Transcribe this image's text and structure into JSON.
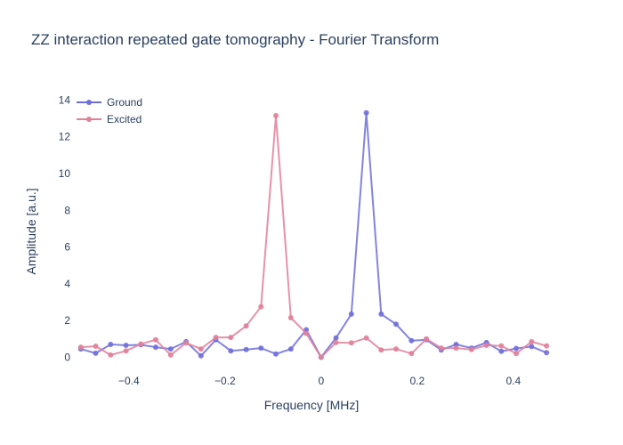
{
  "chart_data": {
    "type": "line",
    "title": "ZZ interaction repeated gate tomography - Fourier Transform",
    "xlabel": "Frequency [MHz]",
    "ylabel": "Amplitude [a.u.]",
    "xlim": [
      -0.52,
      0.48
    ],
    "ylim": [
      -0.9,
      14.6
    ],
    "xticks": [
      -0.4,
      -0.2,
      0,
      0.2,
      0.4
    ],
    "xtick_labels": [
      "−0.4",
      "−0.2",
      "0",
      "0.2",
      "0.4"
    ],
    "yticks": [
      0,
      2,
      4,
      6,
      8,
      10,
      12,
      14
    ],
    "ytick_labels": [
      "0",
      "2",
      "4",
      "6",
      "8",
      "10",
      "12",
      "14"
    ],
    "grid": false,
    "legend_position": "top-left",
    "series": [
      {
        "name": "Ground",
        "color": "#6f6fd9",
        "points": [
          [
            -0.5,
            0.45
          ],
          [
            -0.469,
            0.22
          ],
          [
            -0.438,
            0.7
          ],
          [
            -0.406,
            0.65
          ],
          [
            -0.375,
            0.68
          ],
          [
            -0.344,
            0.55
          ],
          [
            -0.313,
            0.45
          ],
          [
            -0.281,
            0.85
          ],
          [
            -0.25,
            0.08
          ],
          [
            -0.219,
            0.95
          ],
          [
            -0.188,
            0.35
          ],
          [
            -0.156,
            0.42
          ],
          [
            -0.125,
            0.5
          ],
          [
            -0.094,
            0.18
          ],
          [
            -0.063,
            0.45
          ],
          [
            -0.031,
            1.5
          ],
          [
            0.0,
            0.0
          ],
          [
            0.031,
            1.05
          ],
          [
            0.063,
            2.35
          ],
          [
            0.094,
            13.3
          ],
          [
            0.125,
            2.35
          ],
          [
            0.156,
            1.8
          ],
          [
            0.188,
            0.9
          ],
          [
            0.219,
            0.95
          ],
          [
            0.25,
            0.4
          ],
          [
            0.281,
            0.7
          ],
          [
            0.313,
            0.5
          ],
          [
            0.344,
            0.8
          ],
          [
            0.375,
            0.32
          ],
          [
            0.406,
            0.48
          ],
          [
            0.438,
            0.58
          ],
          [
            0.469,
            0.25
          ]
        ]
      },
      {
        "name": "Excited",
        "color": "#e0809a",
        "points": [
          [
            -0.5,
            0.55
          ],
          [
            -0.469,
            0.6
          ],
          [
            -0.438,
            0.12
          ],
          [
            -0.406,
            0.35
          ],
          [
            -0.375,
            0.72
          ],
          [
            -0.344,
            0.95
          ],
          [
            -0.313,
            0.12
          ],
          [
            -0.281,
            0.78
          ],
          [
            -0.25,
            0.45
          ],
          [
            -0.219,
            1.08
          ],
          [
            -0.188,
            1.08
          ],
          [
            -0.156,
            1.7
          ],
          [
            -0.125,
            2.75
          ],
          [
            -0.094,
            13.15
          ],
          [
            -0.063,
            2.15
          ],
          [
            -0.031,
            1.3
          ],
          [
            0.0,
            0.0
          ],
          [
            0.031,
            0.8
          ],
          [
            0.063,
            0.78
          ],
          [
            0.094,
            1.05
          ],
          [
            0.125,
            0.4
          ],
          [
            0.156,
            0.45
          ],
          [
            0.188,
            0.2
          ],
          [
            0.219,
            1.0
          ],
          [
            0.25,
            0.5
          ],
          [
            0.281,
            0.5
          ],
          [
            0.313,
            0.42
          ],
          [
            0.344,
            0.65
          ],
          [
            0.375,
            0.62
          ],
          [
            0.406,
            0.2
          ],
          [
            0.438,
            0.85
          ],
          [
            0.469,
            0.62
          ]
        ]
      }
    ]
  }
}
